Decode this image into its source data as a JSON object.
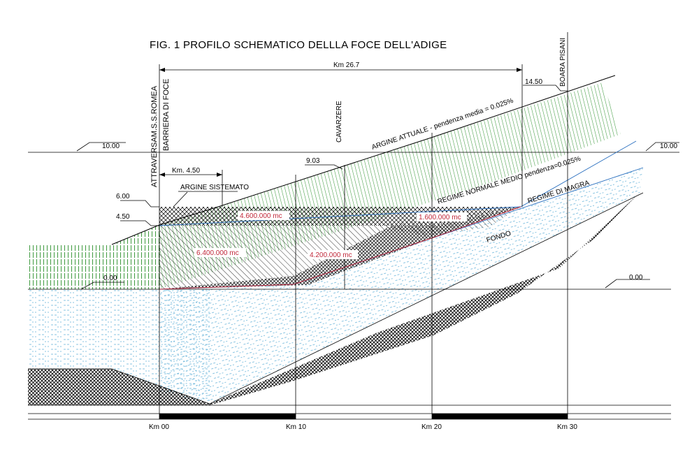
{
  "title": "FIG. 1  PROFILO SCHEMATICO DELLLA FOCE DELL'ADIGE",
  "distance_total": "Km 26.7",
  "distance_partial": "Km.  4.50",
  "locations": {
    "attraversam": "ATTRAVERSAM.S.S.ROMEA",
    "barriera": "BARRIERA DI FOCE",
    "cavarzere": "CAVARZERE",
    "boara": "BOARA PISANI"
  },
  "levels": {
    "l1450": "14.50",
    "l1000_left": "10.00",
    "l1000_right": "10.00",
    "l903": "9.03",
    "l600": "6.00",
    "l450": "4.50",
    "l000_left": "0.00",
    "l000_right": "0.00"
  },
  "labels": {
    "argine_sistemato": "ARGINE SISTEMATO",
    "argine_attuale": "ARGINE ATTUALE  -  pendenza media = 0.025%",
    "regime_normale": "REGIME NORMALE MEDIO  pendenza=0.025%",
    "regime_magra": "REGIME DI MAGRA",
    "fondo": "FONDO"
  },
  "volumes": {
    "v4600": "4.600.000 mc",
    "v1600": "1.600.000 mc",
    "v6400": "6.400.000 mc",
    "v4200": "4.200.000 mc"
  },
  "km_axis": [
    "Km 00",
    "Km 10",
    "Km 20",
    "Km 30"
  ],
  "colors": {
    "embankment": "#3f9a3f",
    "water": "#5fb0d8",
    "volume_text": "#c0283a",
    "regime_line": "#2a6fbf"
  }
}
